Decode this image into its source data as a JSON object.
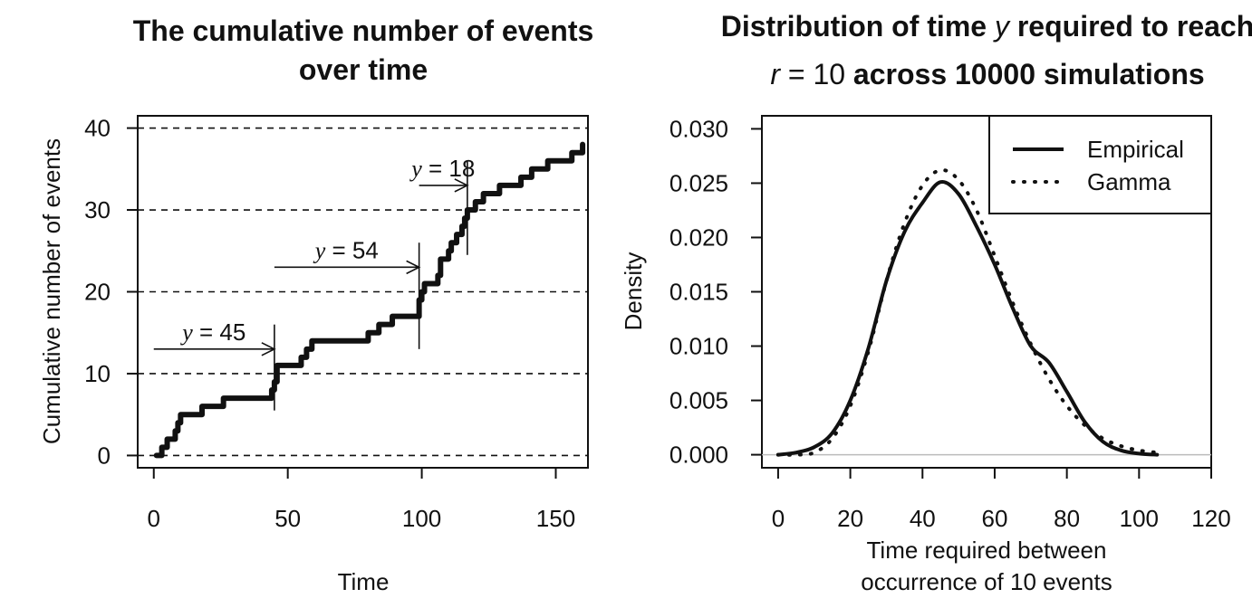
{
  "chart_data": [
    {
      "type": "line",
      "title_line1": "The cumulative number of events",
      "title_line2": "over time",
      "xlabel": "Time",
      "ylabel": "Cumulative number of events",
      "xlim": [
        -6,
        162
      ],
      "ylim": [
        -1.5,
        41.5
      ],
      "xticks": [
        0,
        50,
        100,
        150
      ],
      "yticks": [
        0,
        10,
        20,
        30,
        40
      ],
      "hlines": [
        0,
        10,
        20,
        30,
        40
      ],
      "grid": "dashed horizontal",
      "event_times": [
        3,
        4,
        5,
        8,
        9,
        10,
        11,
        16,
        18,
        20,
        23,
        24,
        26,
        27,
        30,
        33,
        35,
        38,
        40,
        42,
        44,
        45,
        46,
        47,
        55,
        57,
        59,
        62,
        65,
        80,
        84,
        86,
        89,
        97,
        99,
        100,
        101,
        102,
        106,
        107,
        108,
        110,
        111,
        113,
        115,
        116,
        117,
        118,
        120,
        123,
        129,
        131,
        137,
        139,
        141,
        147,
        156,
        158,
        160
      ],
      "counts_after": [
        1,
        1,
        2,
        3,
        4,
        5,
        5,
        5,
        6,
        6,
        6,
        6,
        7,
        7,
        7,
        7,
        7,
        7,
        7,
        7,
        8,
        9,
        11,
        11,
        12,
        13,
        14,
        14,
        14,
        15,
        16,
        16,
        17,
        17,
        19,
        20,
        21,
        21,
        22,
        24,
        24,
        25,
        26,
        27,
        28,
        29,
        30,
        30,
        31,
        32,
        33,
        33,
        34,
        34,
        35,
        36,
        37,
        37,
        38
      ],
      "annotations": [
        {
          "label": "y = 45",
          "y_text": "y",
          "eq_text": " = 45",
          "from_x": 0,
          "to_x": 45,
          "at_y": 13,
          "marker_x": 45
        },
        {
          "label": "y = 54",
          "y_text": "y",
          "eq_text": " = 54",
          "from_x": 45,
          "to_x": 99,
          "at_y": 23,
          "marker_x": 99
        },
        {
          "label": "y = 18",
          "y_text": "y",
          "eq_text": " = 18",
          "from_x": 99,
          "to_x": 117,
          "at_y": 33,
          "marker_x": 117
        }
      ]
    },
    {
      "type": "line",
      "title_line1_a": "Distribution of time ",
      "title_line1_b": "y",
      "title_line1_c": " required to reach",
      "title_line2_a": "r",
      "title_line2_b": " = 10",
      "title_line2_c": " across 10000 simulations",
      "xlabel_line1": "Time required between",
      "xlabel_line2": "occurrence of 10 events",
      "ylabel": "Density",
      "xlim": [
        -4.5,
        120
      ],
      "ylim": [
        -0.0012,
        0.0312
      ],
      "xticks": [
        0,
        20,
        40,
        60,
        80,
        100,
        120
      ],
      "yticks": [
        "0.000",
        "0.005",
        "0.010",
        "0.015",
        "0.020",
        "0.025",
        "0.030"
      ],
      "baseline_y": 0,
      "legend": {
        "placement": "top-right",
        "entries": [
          "Empirical",
          "Gamma"
        ]
      },
      "series": [
        {
          "name": "Empirical",
          "style": "solid",
          "x": [
            0,
            5,
            10,
            15,
            20,
            25,
            30,
            35,
            40,
            45,
            50,
            55,
            60,
            65,
            70,
            75,
            80,
            85,
            90,
            95,
            100,
            105
          ],
          "y": [
            0.0,
            0.0002,
            0.0007,
            0.002,
            0.005,
            0.0098,
            0.016,
            0.0205,
            0.0232,
            0.0251,
            0.024,
            0.021,
            0.0175,
            0.0135,
            0.01,
            0.0085,
            0.0058,
            0.003,
            0.0012,
            0.0004,
            0.0001,
            0.0
          ]
        },
        {
          "name": "Gamma",
          "style": "dotted",
          "x": [
            0,
            5,
            10,
            15,
            20,
            25,
            30,
            35,
            40,
            45,
            50,
            55,
            60,
            65,
            70,
            75,
            80,
            85,
            90,
            95,
            100,
            105
          ],
          "y": [
            0.0,
            0.0,
            0.0002,
            0.0015,
            0.0045,
            0.0095,
            0.016,
            0.0213,
            0.0248,
            0.0262,
            0.0253,
            0.0225,
            0.0183,
            0.014,
            0.0102,
            0.007,
            0.0045,
            0.0027,
            0.0015,
            0.0008,
            0.0004,
            0.0002
          ]
        }
      ]
    }
  ]
}
